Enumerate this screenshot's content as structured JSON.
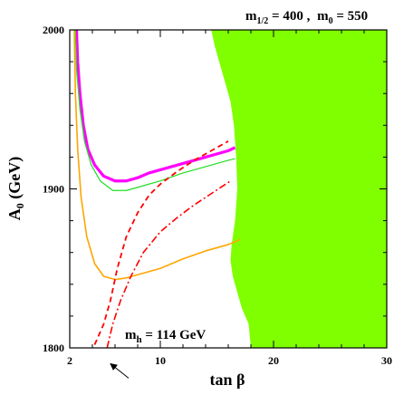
{
  "chart_data": {
    "type": "line",
    "header": {
      "m_half_main": "m",
      "m_half_sub": "1/2",
      "m_half_value": " = 400 ,",
      "m0_main": "m",
      "m0_sub": "0",
      "m0_value": " = 550"
    },
    "xlabel": "tan β",
    "ylabel": {
      "main": "A",
      "sub": "0",
      "unit": " (GeV)"
    },
    "xlim": [
      2,
      30
    ],
    "ylim": [
      1800,
      2000
    ],
    "xticks": [
      {
        "value": 2,
        "label": "2"
      },
      {
        "value": 10,
        "label": "10"
      },
      {
        "value": 20,
        "label": "20"
      },
      {
        "value": 30,
        "label": "30"
      }
    ],
    "yticks": [
      {
        "value": 1800,
        "label": "1800"
      },
      {
        "value": 1900,
        "label": "1900"
      },
      {
        "value": 2000,
        "label": "2000"
      }
    ],
    "annotation": {
      "main": "m",
      "sub": "h",
      "value": "  = 114 GeV"
    },
    "regions": [
      {
        "name": "excluded-region",
        "color": "#7fff00",
        "points": [
          [
            14.5,
            2000
          ],
          [
            30,
            2000
          ],
          [
            30,
            1800
          ],
          [
            18,
            1800
          ],
          [
            17.8,
            1815
          ],
          [
            17.2,
            1825
          ],
          [
            16.8,
            1835
          ],
          [
            16.4,
            1845
          ],
          [
            16.2,
            1855
          ],
          [
            16.3,
            1865
          ],
          [
            16.6,
            1880
          ],
          [
            16.8,
            1900
          ],
          [
            16.7,
            1920
          ],
          [
            16.5,
            1940
          ],
          [
            16.2,
            1955
          ],
          [
            15.6,
            1970
          ],
          [
            15.2,
            1980
          ],
          [
            14.8,
            1990
          ],
          [
            14.5,
            2000
          ]
        ]
      }
    ],
    "series": [
      {
        "id": "magenta-thick",
        "color": "#ff00ff",
        "width": 3.2,
        "dash": "",
        "points": [
          [
            2.6,
            2000
          ],
          [
            2.7,
            1980
          ],
          [
            2.9,
            1960
          ],
          [
            3.2,
            1940
          ],
          [
            3.6,
            1925
          ],
          [
            4.2,
            1915
          ],
          [
            5.0,
            1908
          ],
          [
            6.0,
            1905
          ],
          [
            7.0,
            1905
          ],
          [
            8.0,
            1907
          ],
          [
            9.0,
            1910
          ],
          [
            10.0,
            1912
          ],
          [
            12.0,
            1916
          ],
          [
            14.0,
            1920
          ],
          [
            16.0,
            1924
          ],
          [
            16.6,
            1926
          ]
        ]
      },
      {
        "id": "green-thin",
        "color": "#22dd22",
        "width": 1.2,
        "dash": "",
        "points": [
          [
            2.5,
            2000
          ],
          [
            2.6,
            1975
          ],
          [
            2.9,
            1950
          ],
          [
            3.3,
            1930
          ],
          [
            3.9,
            1915
          ],
          [
            4.7,
            1905
          ],
          [
            5.8,
            1899
          ],
          [
            7.0,
            1899
          ],
          [
            8.5,
            1902
          ],
          [
            10.0,
            1905
          ],
          [
            12.0,
            1910
          ],
          [
            14.0,
            1914
          ],
          [
            16.0,
            1918
          ],
          [
            16.6,
            1919
          ]
        ]
      },
      {
        "id": "orange",
        "color": "#ffa500",
        "width": 1.6,
        "dash": "",
        "points": [
          [
            2.4,
            2000
          ],
          [
            2.5,
            1960
          ],
          [
            2.7,
            1925
          ],
          [
            3.0,
            1895
          ],
          [
            3.5,
            1870
          ],
          [
            4.2,
            1853
          ],
          [
            5.0,
            1845
          ],
          [
            6.0,
            1843
          ],
          [
            7.0,
            1844
          ],
          [
            8.0,
            1846
          ],
          [
            10.0,
            1850
          ],
          [
            12.0,
            1856
          ],
          [
            14.0,
            1861
          ],
          [
            16.0,
            1865
          ],
          [
            17.0,
            1868
          ]
        ]
      },
      {
        "id": "red-dashed",
        "color": "#ff0000",
        "width": 1.8,
        "dash": "6,4",
        "points": [
          [
            4.2,
            1802
          ],
          [
            5.0,
            1815
          ],
          [
            5.6,
            1830
          ],
          [
            6.2,
            1850
          ],
          [
            7.0,
            1870
          ],
          [
            8.0,
            1885
          ],
          [
            9.0,
            1896
          ],
          [
            10.0,
            1903
          ],
          [
            11.5,
            1911
          ],
          [
            13.0,
            1918
          ],
          [
            14.5,
            1924
          ],
          [
            16.0,
            1930
          ]
        ]
      },
      {
        "id": "red-dashdot",
        "color": "#ff0000",
        "width": 1.6,
        "dash": "8,3,2,3",
        "points": [
          [
            5.3,
            1800
          ],
          [
            5.8,
            1815
          ],
          [
            6.5,
            1830
          ],
          [
            7.4,
            1845
          ],
          [
            8.5,
            1860
          ],
          [
            10.0,
            1873
          ],
          [
            11.5,
            1882
          ],
          [
            13.0,
            1890
          ],
          [
            14.5,
            1897
          ],
          [
            16.2,
            1905
          ]
        ]
      }
    ],
    "arrow": {
      "from": [
        7.2,
        1781
      ],
      "to": [
        5.6,
        1790
      ]
    }
  }
}
